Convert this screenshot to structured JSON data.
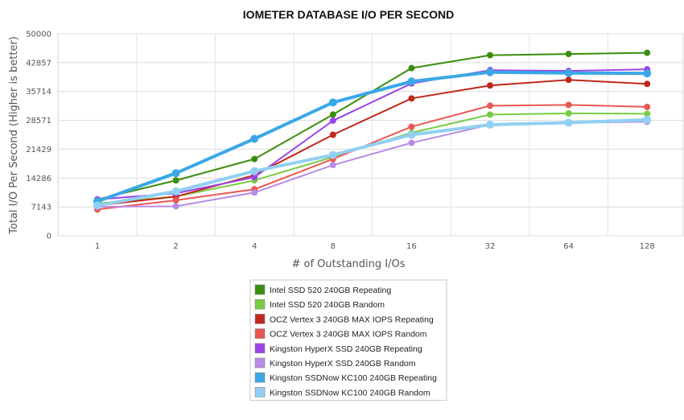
{
  "chart_data": {
    "type": "line",
    "title": "IOMETER DATABASE I/O PER SECOND",
    "xlabel": "# of Outstanding I/Os",
    "ylabel": "Total I/O Per Second (Higher is better)",
    "categories": [
      "1",
      "2",
      "4",
      "8",
      "16",
      "32",
      "64",
      "128"
    ],
    "yticks": [
      "0",
      "7143",
      "14286",
      "21429",
      "28571",
      "35714",
      "42857",
      "50000"
    ],
    "ylim": [
      0,
      50000
    ],
    "grid": true,
    "legend_position": "bottom",
    "series": [
      {
        "name": "Intel SSD 520 240GB Repeating",
        "color": "#3a8e0c",
        "width": 2,
        "values": [
          9000,
          13700,
          19000,
          30000,
          41500,
          44700,
          45000,
          45300
        ]
      },
      {
        "name": "Intel SSD 520 240GB Random",
        "color": "#77cc44",
        "width": 2,
        "values": [
          8000,
          9700,
          13700,
          19500,
          25500,
          30000,
          30300,
          30200
        ]
      },
      {
        "name": "OCZ Vertex 3 240GB MAX IOPS Repeating",
        "color": "#c0281c",
        "width": 2,
        "values": [
          7500,
          9700,
          15000,
          25000,
          34000,
          37200,
          38600,
          37600
        ]
      },
      {
        "name": "OCZ Vertex 3 240GB MAX IOPS Random",
        "color": "#ea5752",
        "width": 2,
        "values": [
          6500,
          8800,
          11500,
          19000,
          27000,
          32200,
          32400,
          31900
        ]
      },
      {
        "name": "Kingston HyperX SSD 240GB Repeating",
        "color": "#9a45e8",
        "width": 2,
        "values": [
          9000,
          10500,
          14500,
          28500,
          37700,
          41000,
          40800,
          41200
        ]
      },
      {
        "name": "Kingston HyperX SSD 240GB Random",
        "color": "#b98ae6",
        "width": 2,
        "values": [
          7200,
          7300,
          10700,
          17500,
          23000,
          27500,
          28000,
          28200
        ]
      },
      {
        "name": "Kingston SSDNow KC100 240GB Repeating",
        "color": "#3aa8e6",
        "width": 4,
        "values": [
          8500,
          15500,
          24000,
          33000,
          38200,
          40500,
          40300,
          40200
        ]
      },
      {
        "name": "Kingston SSDNow KC100 240GB Random",
        "color": "#90d0f2",
        "width": 4,
        "values": [
          7500,
          11000,
          16000,
          20000,
          25000,
          27500,
          28000,
          28700
        ]
      }
    ]
  }
}
